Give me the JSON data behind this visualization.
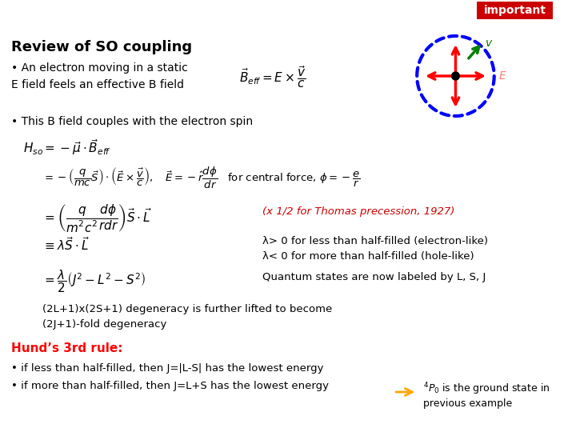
{
  "bg_color": "#f0f0f0",
  "slide_bg": "#ffffff",
  "important_bg": "#cc0000",
  "important_text": "important",
  "title": "Review of SO coupling",
  "bullet1": "• An electron moving in a static\nE field feels an effective B field",
  "formula_beff": "$\\vec{B}_{eff} = E \\times \\dfrac{\\vec{v}}{c}$",
  "bullet2": "• This B field couples with the electron spin",
  "formula_hso": "$H_{so} = -\\vec{\\mu}\\cdot\\vec{B}_{eff}$",
  "formula_line2": "$= -\\left(\\dfrac{q}{mc}\\vec{S}\\right)\\cdot\\left(\\vec{E}\\times\\dfrac{\\vec{v}}{c}\\right),\\quad \\vec{E} = -\\hat{r}\\dfrac{d\\phi}{dr}\\quad$ for central force, $\\phi=-\\dfrac{e}{r}$",
  "formula_line3": "$= \\left(\\dfrac{q}{m^2c^2}\\dfrac{d\\phi}{rdr}\\right)\\vec{S}\\cdot\\vec{L}$",
  "thomas_note": "(x 1/2 for Thomas precession, 1927)",
  "formula_line4": "$\\equiv \\lambda\\vec{S}\\cdot\\vec{L}$",
  "lambda_notes": "λ> 0 for less than half-filled (electron-like)\nλ< 0 for more than half-filled (hole-like)",
  "formula_line5": "$= \\dfrac{\\lambda}{2}\\left(J^2 - L^2 - S^2\\right)$",
  "quantum_note": "Quantum states are now labeled by L, S, J",
  "degen_text": "(2L+1)x(2S+1) degeneracy is further lifted to become\n(2J+1)-fold degeneracy",
  "hund_title": "Hund’s 3rd rule:",
  "hund1": "• if less than half-filled, then J=|L-S| has the lowest energy",
  "hund2": "• if more than half-filled, then J=L+S has the lowest energy",
  "arrow_label": "${}^4P_0$ is the ground state in\nprevious example"
}
